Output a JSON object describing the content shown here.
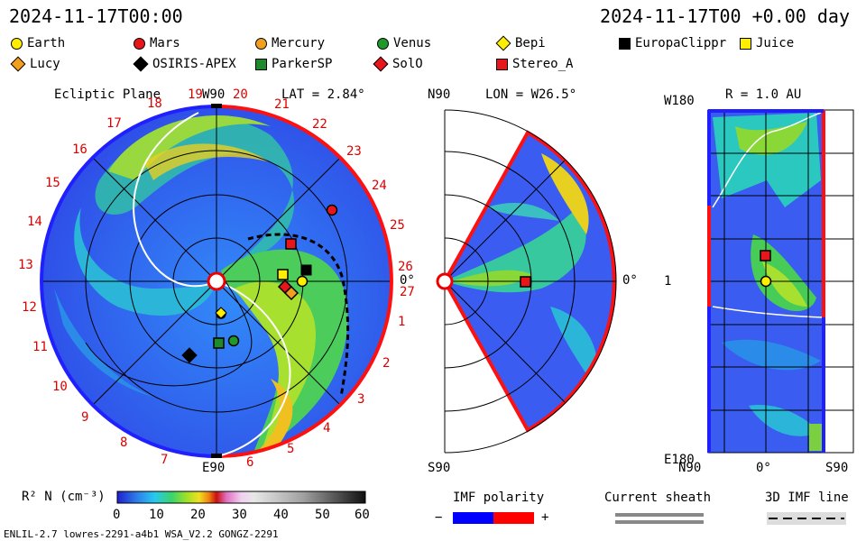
{
  "header": {
    "left_time": "2024-11-17T00:00",
    "right_time": "2024-11-17T00 +0.00 day"
  },
  "legend": [
    {
      "name": "Earth",
      "shape": "circle",
      "color": "#ffee00"
    },
    {
      "name": "Mars",
      "shape": "circle",
      "color": "#e8161b"
    },
    {
      "name": "Mercury",
      "shape": "circle",
      "color": "#f29e1f"
    },
    {
      "name": "Venus",
      "shape": "circle",
      "color": "#1f9a2a"
    },
    {
      "name": "Bepi",
      "shape": "diamond",
      "color": "#ffee00"
    },
    {
      "name": "EuropaClippr",
      "shape": "square",
      "color": "#000000"
    },
    {
      "name": "Juice",
      "shape": "square",
      "color": "#ffee00"
    },
    {
      "name": "Lucy",
      "shape": "diamond",
      "color": "#f29e1f"
    },
    {
      "name": "OSIRIS-APEX",
      "shape": "diamond",
      "color": "#000000"
    },
    {
      "name": "ParkerSP",
      "shape": "square",
      "color": "#1f8a2a"
    },
    {
      "name": "SolO",
      "shape": "diamond",
      "color": "#e8161b"
    },
    {
      "name": "Stereo_A",
      "shape": "square",
      "color": "#e8161b"
    }
  ],
  "panel1": {
    "title": "Ecliptic Plane",
    "lat": "LAT = 2.84°",
    "top_label": "W90",
    "bottom_label": "E90",
    "right_label": "0°",
    "carrington": [
      "1",
      "2",
      "3",
      "4",
      "5",
      "6",
      "7",
      "8",
      "9",
      "10",
      "11",
      "12",
      "13",
      "14",
      "15",
      "16",
      "17",
      "18",
      "19",
      "20",
      "21",
      "22",
      "23",
      "24",
      "25",
      "26",
      "27"
    ]
  },
  "panel2": {
    "lon": "LON = W26.5°",
    "top_label": "N90",
    "bottom_label": "S90",
    "right_label": "0°"
  },
  "panel3": {
    "title": "R = 1.0 AU",
    "top_label": "W180",
    "bottom_label": "E180",
    "mid_label": "1",
    "x_labels": [
      "N90",
      "0°",
      "S90"
    ]
  },
  "colorbar": {
    "label": "R² N (cm⁻³)",
    "ticks": [
      "0",
      "10",
      "20",
      "30",
      "40",
      "50",
      "60"
    ]
  },
  "imf": {
    "title": "IMF polarity",
    "minus": "−",
    "plus": "+",
    "colors": {
      "negative": "#0000ff",
      "positive": "#ff0000"
    }
  },
  "current_sheath": "Current sheath",
  "imf_line": "3D IMF line",
  "footer": "ENLIL-2.7 lowres-2291-a4b1 WSA_V2.2 GONGZ-2291"
}
